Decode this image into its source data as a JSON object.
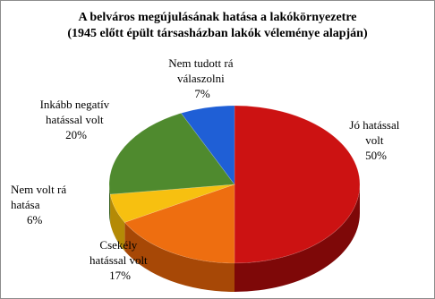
{
  "chart_data": {
    "type": "pie",
    "title": "A belváros megújulásának hatása a lakókörnyezetre",
    "subtitle": "(1945 előtt épült társasházban lakók véleménye alapján)",
    "slices": [
      {
        "label_lines": [
          "Jó hatással",
          "volt"
        ],
        "pct_label": "50%",
        "value": 50,
        "color": "#cc1212",
        "side": "#7e0808"
      },
      {
        "label_lines": [
          "Csekély",
          "hatással volt"
        ],
        "pct_label": "17%",
        "value": 17,
        "color": "#ee6e10",
        "side": "#a74806"
      },
      {
        "label_lines": [
          "Nem volt rá",
          "hatása"
        ],
        "pct_label": "6%",
        "value": 6,
        "color": "#f7c010",
        "side": "#b48a06"
      },
      {
        "label_lines": [
          "Inkább negatív",
          "hatással volt"
        ],
        "pct_label": "20%",
        "value": 20,
        "color": "#4f8a2e",
        "side": "#2f5a18"
      },
      {
        "label_lines": [
          "Nem tudott rá",
          "válaszolni"
        ],
        "pct_label": "7%",
        "value": 7,
        "color": "#1f5fd6",
        "side": "#0e3a8e"
      }
    ]
  }
}
